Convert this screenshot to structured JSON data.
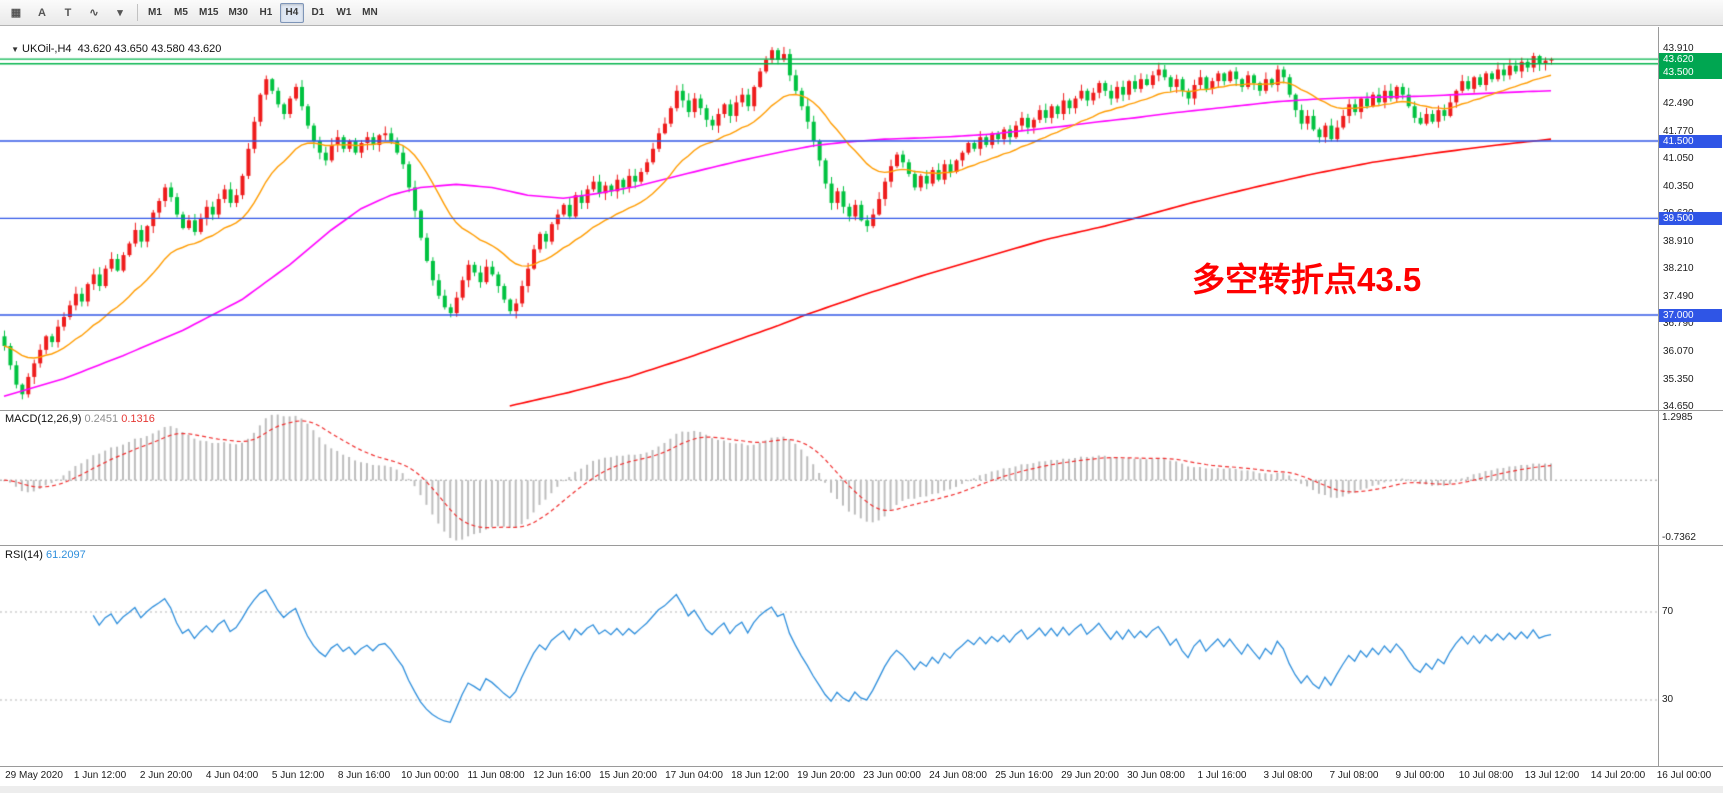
{
  "toolbar": {
    "left_icons": [
      {
        "name": "charts-grid-icon",
        "glyph": "▦"
      },
      {
        "name": "cursor-icon",
        "glyph": "A"
      },
      {
        "name": "text-tool-icon",
        "glyph": "T"
      },
      {
        "name": "indicator-zigzag-icon",
        "glyph": "∿"
      },
      {
        "name": "caret-down-icon",
        "glyph": "▾"
      }
    ],
    "timeframes": [
      "M1",
      "M5",
      "M15",
      "M30",
      "H1",
      "H4",
      "D1",
      "W1",
      "MN"
    ],
    "active_timeframe": "H4"
  },
  "chart": {
    "symbol_line": {
      "collapse_glyph": "▼",
      "text": "UKOil-,H4  43.620 43.650 43.580 43.620"
    },
    "annotation": {
      "text": "多空转折点43.5",
      "color": "#ff0000"
    },
    "y_axis": {
      "ticks": [
        "43.910",
        "43.190",
        "42.490",
        "41.770",
        "41.050",
        "40.350",
        "39.630",
        "38.910",
        "38.210",
        "37.490",
        "36.790",
        "36.070",
        "35.350",
        "34.650"
      ]
    },
    "h_lines": {
      "green": [
        43.62,
        43.5
      ],
      "blue": [
        41.5,
        39.5,
        37.0
      ]
    },
    "badges": [
      {
        "text": "43.620",
        "price": 43.62,
        "color": "#00a651"
      },
      {
        "text": "43.500",
        "price": 43.5,
        "color": "#00a651"
      },
      {
        "text": "41.500",
        "price": 41.5,
        "color": "#2f55e6"
      },
      {
        "text": "39.500",
        "price": 39.5,
        "color": "#2f55e6"
      },
      {
        "text": "37.000",
        "price": 37.0,
        "color": "#2f55e6"
      }
    ]
  },
  "colors": {
    "up": "#ee1c1c",
    "down": "#00c240",
    "ma_fast": "#ff9c00",
    "ma_mid": "#ff00ff",
    "ma_slow": "#ff0000",
    "green_line": "#00b44a",
    "blue_line": "#2f55e6",
    "macd_hist": "#bdbdbd",
    "macd_signal": "#f03030",
    "rsi": "#2f8fdc",
    "level_dotted": "#b5b5b5"
  },
  "chart_data": {
    "type": "candlestick",
    "symbol": "UKOil-",
    "timeframe": "H4",
    "ohlc_display": {
      "open": "43.620",
      "high": "43.650",
      "low": "43.580",
      "close": "43.620"
    },
    "y_render_range": [
      34.57,
      44.45
    ],
    "closes": [
      36.2,
      35.7,
      35.2,
      34.95,
      35.4,
      35.75,
      36.1,
      36.45,
      36.3,
      36.7,
      36.95,
      37.25,
      37.55,
      37.35,
      37.8,
      38.05,
      37.75,
      38.2,
      38.45,
      38.15,
      38.55,
      38.85,
      39.2,
      38.9,
      39.3,
      39.65,
      39.95,
      40.3,
      40.05,
      39.6,
      39.25,
      39.45,
      39.15,
      39.5,
      39.8,
      39.6,
      40.0,
      40.25,
      39.9,
      40.1,
      40.6,
      41.3,
      42.0,
      42.7,
      43.1,
      42.8,
      42.45,
      42.2,
      42.6,
      42.9,
      42.4,
      41.9,
      41.5,
      41.2,
      41.0,
      41.4,
      41.6,
      41.3,
      41.5,
      41.2,
      41.45,
      41.6,
      41.4,
      41.65,
      41.7,
      41.5,
      41.2,
      40.9,
      40.3,
      39.7,
      39.0,
      38.4,
      37.9,
      37.5,
      37.2,
      37.05,
      37.45,
      37.9,
      38.3,
      38.1,
      37.85,
      38.25,
      38.05,
      37.75,
      37.4,
      37.1,
      37.3,
      37.75,
      38.2,
      38.7,
      39.1,
      38.9,
      39.35,
      39.6,
      39.85,
      39.55,
      40.1,
      39.9,
      40.25,
      40.45,
      40.15,
      40.35,
      40.2,
      40.5,
      40.3,
      40.6,
      40.45,
      40.7,
      40.95,
      41.3,
      41.7,
      41.95,
      42.35,
      42.8,
      42.55,
      42.25,
      42.6,
      42.35,
      42.05,
      41.9,
      42.2,
      42.45,
      42.15,
      42.5,
      42.7,
      42.4,
      42.9,
      43.3,
      43.6,
      43.85,
      43.6,
      43.75,
      43.2,
      42.8,
      42.4,
      42.0,
      41.5,
      41.0,
      40.4,
      39.9,
      40.2,
      39.8,
      39.55,
      39.85,
      39.45,
      39.3,
      39.6,
      40.0,
      40.45,
      40.85,
      41.15,
      40.95,
      40.65,
      40.3,
      40.6,
      40.4,
      40.75,
      40.5,
      40.9,
      40.7,
      41.0,
      41.2,
      41.45,
      41.3,
      41.6,
      41.4,
      41.7,
      41.55,
      41.8,
      41.6,
      41.9,
      42.1,
      41.85,
      42.05,
      42.3,
      42.1,
      42.4,
      42.2,
      42.55,
      42.35,
      42.6,
      42.8,
      42.55,
      42.75,
      43.0,
      42.8,
      42.6,
      42.9,
      42.7,
      43.05,
      42.85,
      43.1,
      42.95,
      43.2,
      43.35,
      43.15,
      42.9,
      43.1,
      42.8,
      42.6,
      42.95,
      43.15,
      42.85,
      43.05,
      43.25,
      43.05,
      43.3,
      43.1,
      42.9,
      43.2,
      43.0,
      42.8,
      43.1,
      42.95,
      43.35,
      43.15,
      42.7,
      42.3,
      41.95,
      42.15,
      41.8,
      41.6,
      41.9,
      41.55,
      41.85,
      42.15,
      42.45,
      42.25,
      42.6,
      42.4,
      42.7,
      42.5,
      42.8,
      42.6,
      42.9,
      42.7,
      42.4,
      42.1,
      41.95,
      42.2,
      42.0,
      42.3,
      42.15,
      42.5,
      42.8,
      43.05,
      42.85,
      43.15,
      42.95,
      43.25,
      43.1,
      43.35,
      43.2,
      43.45,
      43.3,
      43.55,
      43.4,
      43.7,
      43.5,
      43.58,
      43.62
    ],
    "ma_fast": {
      "type": "ema",
      "period": 20
    },
    "ma_mid": {
      "points": [
        [
          0,
          34.9
        ],
        [
          10,
          35.35
        ],
        [
          20,
          35.95
        ],
        [
          30,
          36.6
        ],
        [
          40,
          37.4
        ],
        [
          48,
          38.3
        ],
        [
          55,
          39.2
        ],
        [
          60,
          39.75
        ],
        [
          65,
          40.1
        ],
        [
          70,
          40.3
        ],
        [
          76,
          40.38
        ],
        [
          82,
          40.3
        ],
        [
          88,
          40.1
        ],
        [
          94,
          40.02
        ],
        [
          100,
          40.15
        ],
        [
          106,
          40.32
        ],
        [
          112,
          40.55
        ],
        [
          118,
          40.78
        ],
        [
          124,
          41.0
        ],
        [
          130,
          41.2
        ],
        [
          136,
          41.38
        ],
        [
          142,
          41.48
        ],
        [
          148,
          41.55
        ],
        [
          154,
          41.58
        ],
        [
          160,
          41.62
        ],
        [
          166,
          41.68
        ],
        [
          172,
          41.78
        ],
        [
          178,
          41.88
        ],
        [
          184,
          42.0
        ],
        [
          190,
          42.1
        ],
        [
          196,
          42.22
        ],
        [
          202,
          42.32
        ],
        [
          208,
          42.42
        ],
        [
          214,
          42.52
        ],
        [
          220,
          42.58
        ],
        [
          226,
          42.62
        ],
        [
          232,
          42.64
        ],
        [
          238,
          42.66
        ],
        [
          244,
          42.7
        ],
        [
          250,
          42.74
        ],
        [
          256,
          42.78
        ],
        [
          260,
          42.8
        ]
      ]
    },
    "ma_slow": {
      "points": [
        [
          85,
          34.65
        ],
        [
          95,
          35.0
        ],
        [
          105,
          35.4
        ],
        [
          115,
          35.9
        ],
        [
          125,
          36.45
        ],
        [
          130,
          36.72
        ],
        [
          135,
          37.02
        ],
        [
          145,
          37.55
        ],
        [
          155,
          38.05
        ],
        [
          165,
          38.5
        ],
        [
          175,
          38.95
        ],
        [
          185,
          39.3
        ],
        [
          190,
          39.5
        ],
        [
          200,
          39.92
        ],
        [
          210,
          40.3
        ],
        [
          220,
          40.65
        ],
        [
          230,
          40.95
        ],
        [
          240,
          41.18
        ],
        [
          250,
          41.38
        ],
        [
          260,
          41.55
        ]
      ]
    },
    "macd": {
      "label": "MACD(12,26,9)",
      "value": "0.2451",
      "signal_value": "0.1316",
      "fast": 12,
      "slow": 26,
      "signal": 9,
      "axis_top": "1.2985",
      "axis_bottom": "-0.7362"
    },
    "rsi": {
      "label": "RSI(14)",
      "value": "61.2097",
      "period": 14,
      "levels": [
        "70",
        "30"
      ]
    },
    "x_labels": [
      "29 May 2020",
      "1 Jun 12:00",
      "2 Jun 20:00",
      "4 Jun 04:00",
      "5 Jun 12:00",
      "8 Jun 16:00",
      "10 Jun 00:00",
      "11 Jun 08:00",
      "12 Jun 16:00",
      "15 Jun 20:00",
      "17 Jun 04:00",
      "18 Jun 12:00",
      "19 Jun 20:00",
      "23 Jun 00:00",
      "24 Jun 08:00",
      "25 Jun 16:00",
      "29 Jun 20:00",
      "30 Jun 08:00",
      "1 Jul 16:00",
      "3 Jul 08:00",
      "7 Jul 08:00",
      "9 Jul 00:00",
      "10 Jul 08:00",
      "13 Jul 12:00",
      "14 Jul 20:00",
      "16 Jul 00:00"
    ]
  }
}
